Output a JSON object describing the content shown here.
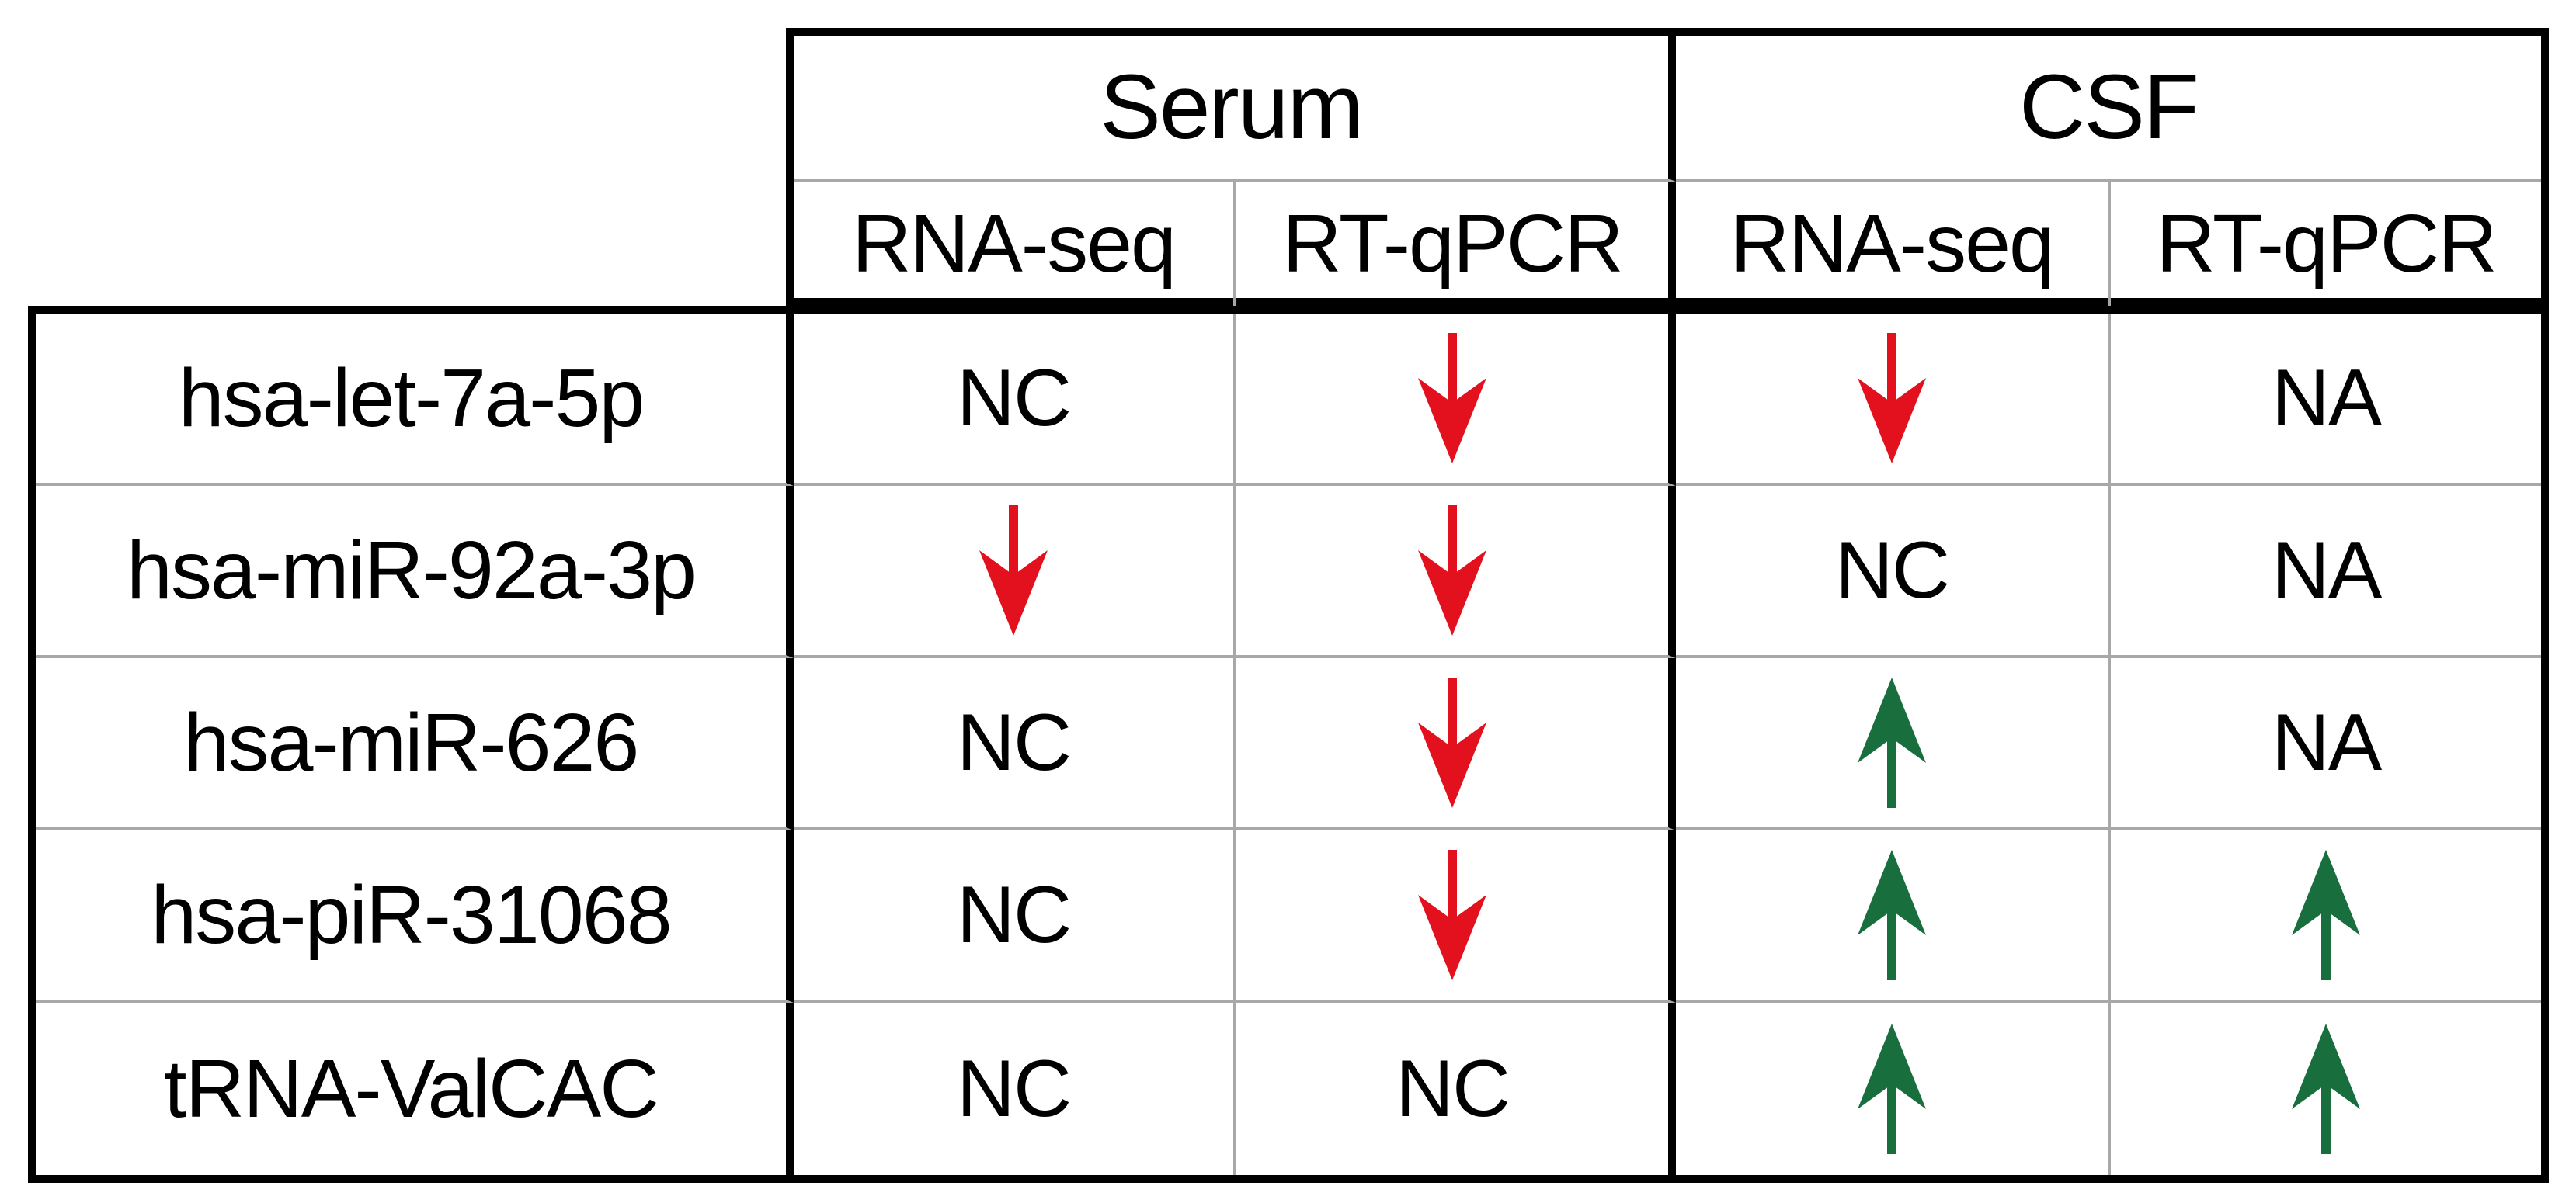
{
  "chart_data": {
    "type": "table",
    "title": "",
    "column_groups": [
      {
        "label": "Serum",
        "columns": [
          "RNA-seq",
          "RT-qPCR"
        ]
      },
      {
        "label": "CSF",
        "columns": [
          "RNA-seq",
          "RT-qPCR"
        ]
      }
    ],
    "sub_headers": [
      "RNA-seq",
      "RT-qPCR",
      "RNA-seq",
      "RT-qPCR"
    ],
    "rows": [
      {
        "label": "hsa-let-7a-5p",
        "values": [
          "NC",
          "down-arrow",
          "down-arrow",
          "NA"
        ]
      },
      {
        "label": "hsa-miR-92a-3p",
        "values": [
          "down-arrow",
          "down-arrow",
          "NC",
          "NA"
        ]
      },
      {
        "label": "hsa-miR-626",
        "values": [
          "NC",
          "down-arrow",
          "up-arrow",
          "NA"
        ]
      },
      {
        "label": "hsa-piR-31068",
        "values": [
          "NC",
          "down-arrow",
          "up-arrow",
          "up-arrow"
        ]
      },
      {
        "label": "tRNA-ValCAC",
        "values": [
          "NC",
          "NC",
          "up-arrow",
          "up-arrow"
        ]
      }
    ],
    "symbols": {
      "down-arrow": {
        "glyph": "↓",
        "color": "#e3101d",
        "name": "red-down-arrow"
      },
      "up-arrow": {
        "glyph": "↑",
        "color": "#186e3d",
        "name": "green-up-arrow"
      }
    },
    "colors": {
      "border": "#000000",
      "grid_line": "#a8a8a8",
      "text": "#000000",
      "background": "#ffffff"
    }
  }
}
